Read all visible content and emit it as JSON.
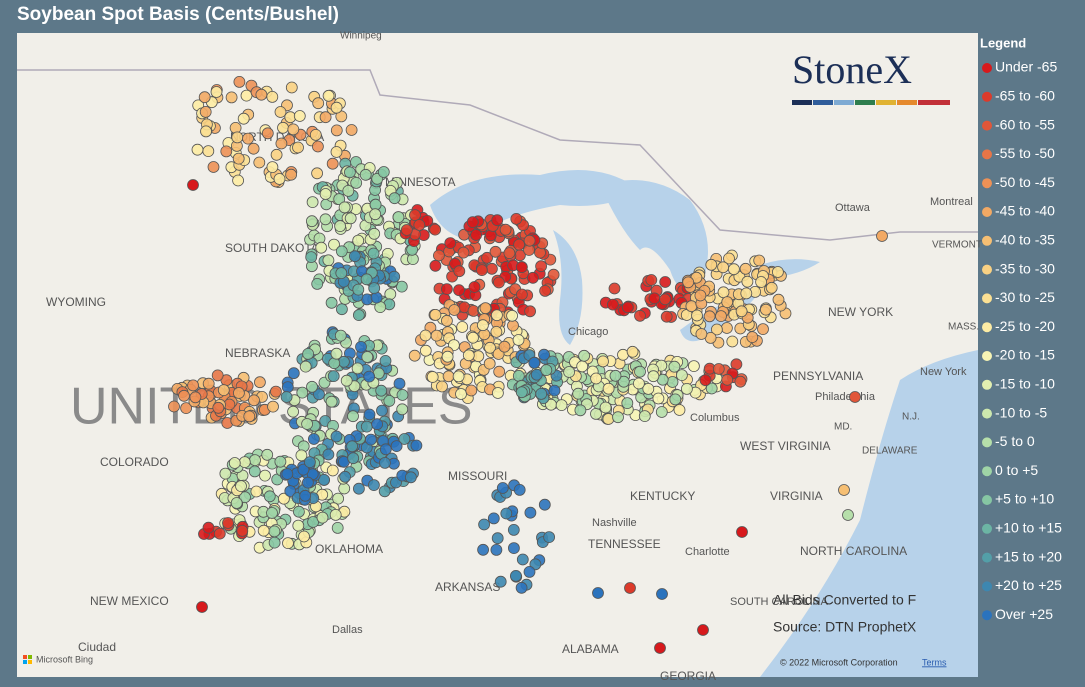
{
  "header": {
    "title": "Soybean Spot Basis (Cents/Bushel)"
  },
  "legend": {
    "title": "Legend",
    "items": [
      {
        "label": "Under -65",
        "color": "#d7191c"
      },
      {
        "label": "-65 to -60",
        "color": "#dc3a2a"
      },
      {
        "label": "-60 to -55",
        "color": "#e15639"
      },
      {
        "label": "-55 to -50",
        "color": "#e77547"
      },
      {
        "label": "-50 to -45",
        "color": "#ed9156"
      },
      {
        "label": "-45 to -40",
        "color": "#f2a964"
      },
      {
        "label": "-40 to -35",
        "color": "#f6bf73"
      },
      {
        "label": "-35 to -30",
        "color": "#f9d183"
      },
      {
        "label": "-30 to -25",
        "color": "#fbe093"
      },
      {
        "label": "-25 to -20",
        "color": "#fdeca4"
      },
      {
        "label": "-20 to -15",
        "color": "#f7f4b4"
      },
      {
        "label": "-15 to -10",
        "color": "#e2efb0"
      },
      {
        "label": "-10 to -5",
        "color": "#cde8ae"
      },
      {
        "label": "-5 to 0",
        "color": "#b6dfaa"
      },
      {
        "label": "0 to +5",
        "color": "#9fd4a6"
      },
      {
        "label": "+5 to +10",
        "color": "#86c6a3"
      },
      {
        "label": "+10 to +15",
        "color": "#6cb5a4"
      },
      {
        "label": "+15 to +20",
        "color": "#539fa8"
      },
      {
        "label": "+20 to +25",
        "color": "#3d87b0"
      },
      {
        "label": "Over +25",
        "color": "#2b73bd"
      }
    ]
  },
  "logo": "StoneX",
  "notes": [
    "All Bids Converted to F",
    "Source: DTN ProphetX"
  ],
  "attribution": {
    "copyright": "© 2022 Microsoft Corporation",
    "terms": "Terms",
    "provider": "Microsoft Bing"
  },
  "map_labels": [
    "Winnipeg",
    "NORTH DAKOTA",
    "MINNESOTA",
    "SOUTH DAKOTA",
    "WYOMING",
    "NEBRASKA",
    "UNITED STATES",
    "COLORADO",
    "OKLAHOMA",
    "NEW MEXICO",
    "Ciudad",
    "Dallas",
    "ARKANSAS",
    "MISSOURI",
    "Chicago",
    "Columbus",
    "KENTUCKY",
    "Nashville",
    "TENNESSEE",
    "WEST VIRGINIA",
    "VIRGINIA",
    "Charlotte",
    "NORTH CAROLINA",
    "SOUTH CAROLINA",
    "ALABAMA",
    "GEORGIA",
    "PENNSYLVANIA",
    "Philadelphia",
    "NEW YORK",
    "New York",
    "Ottawa",
    "Montreal",
    "VERMONT",
    "MASS.",
    "N.J.",
    "MD.",
    "DELAWARE"
  ]
}
